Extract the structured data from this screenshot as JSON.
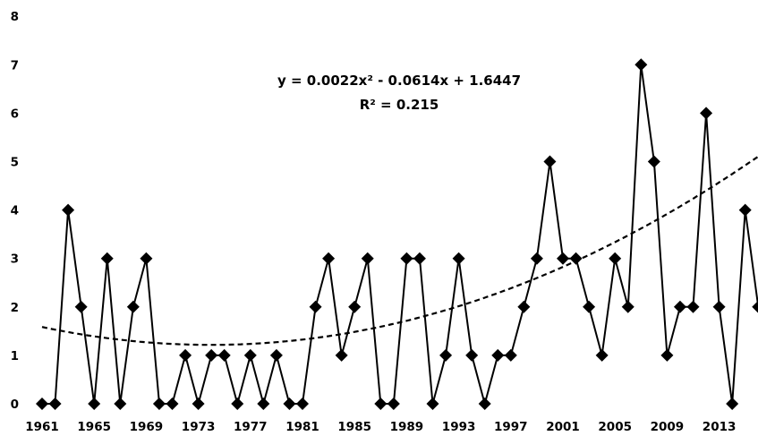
{
  "chart_data": {
    "type": "line",
    "title": "",
    "xlabel": "",
    "ylabel": "",
    "x": [
      1961,
      1962,
      1963,
      1964,
      1965,
      1966,
      1967,
      1968,
      1969,
      1970,
      1971,
      1972,
      1973,
      1974,
      1975,
      1976,
      1977,
      1978,
      1979,
      1980,
      1981,
      1982,
      1983,
      1984,
      1985,
      1986,
      1987,
      1988,
      1989,
      1990,
      1991,
      1992,
      1993,
      1994,
      1995,
      1996,
      1997,
      1998,
      1999,
      2000,
      2001,
      2002,
      2003,
      2004,
      2005,
      2006,
      2007,
      2008,
      2009,
      2010,
      2011,
      2012,
      2013,
      2014,
      2015,
      2016
    ],
    "series": [
      {
        "values": [
          0,
          0,
          4,
          2,
          0,
          3,
          0,
          2,
          3,
          0,
          0,
          1,
          0,
          1,
          1,
          0,
          1,
          0,
          1,
          0,
          0,
          2,
          3,
          1,
          2,
          3,
          0,
          0,
          3,
          3,
          0,
          1,
          3,
          1,
          0,
          1,
          1,
          2,
          3,
          5,
          3,
          3,
          2,
          1,
          3,
          2,
          7,
          5,
          1,
          2,
          2,
          6,
          2,
          0,
          4,
          2
        ],
        "marker": "diamond",
        "color": "#000000"
      }
    ],
    "trendline": {
      "type": "polynomial",
      "order": 2,
      "coefficients": [
        0.0022,
        -0.0614,
        1.6447
      ],
      "style": "dashed",
      "color": "#000000"
    },
    "annotations": [
      "y = 0.0022x² - 0.0614x + 1.6447",
      "R² = 0.215"
    ],
    "ylim": [
      0,
      8
    ],
    "yticks": [
      0,
      1,
      2,
      3,
      4,
      5,
      6,
      7,
      8
    ],
    "xtick_labels": [
      "1961",
      "1965",
      "1969",
      "1973",
      "1977",
      "1981",
      "1985",
      "1989",
      "1993",
      "1997",
      "2001",
      "2005",
      "2009",
      "2013"
    ],
    "grid": false,
    "legend": "none"
  }
}
